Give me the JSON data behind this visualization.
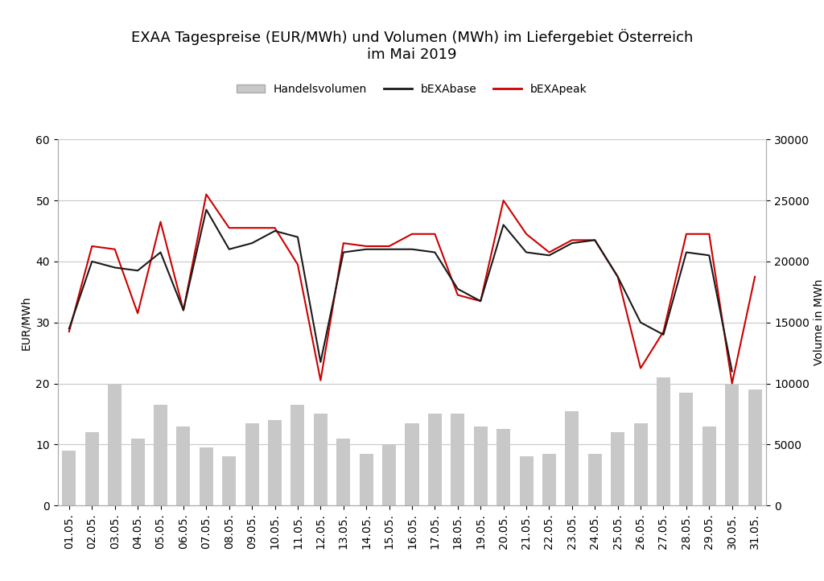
{
  "title": "EXAA Tagespreise (EUR/MWh) und Volumen (MWh) im Liefergebiet Österreich\nim Mai 2019",
  "ylabel_left": "EUR/MWh",
  "ylabel_right": "Volume in MWh",
  "dates": [
    "01.05.",
    "02.05.",
    "03.05.",
    "04.05.",
    "05.05.",
    "06.05.",
    "07.05.",
    "08.05.",
    "09.05.",
    "10.05.",
    "11.05.",
    "12.05.",
    "13.05.",
    "14.05.",
    "15.05.",
    "16.05.",
    "17.05.",
    "18.05.",
    "19.05.",
    "20.05.",
    "21.05.",
    "22.05.",
    "23.05.",
    "24.05.",
    "25.05.",
    "26.05.",
    "27.05.",
    "28.05.",
    "29.05.",
    "30.05.",
    "31.05."
  ],
  "bEXAbase": [
    29.0,
    40.0,
    39.0,
    38.5,
    41.5,
    32.0,
    48.5,
    42.0,
    43.0,
    45.0,
    44.0,
    23.5,
    41.5,
    42.0,
    42.0,
    42.0,
    41.5,
    35.5,
    33.5,
    46.0,
    41.5,
    41.0,
    43.0,
    43.5,
    37.5,
    30.0,
    28.0,
    41.5,
    41.0,
    22.0,
    null
  ],
  "bEXApeak": [
    28.5,
    42.5,
    42.0,
    31.5,
    46.5,
    32.0,
    51.0,
    45.5,
    45.5,
    45.5,
    39.5,
    20.5,
    43.0,
    42.5,
    42.5,
    44.5,
    44.5,
    34.5,
    33.5,
    50.0,
    44.5,
    41.5,
    43.5,
    43.5,
    37.5,
    22.5,
    28.5,
    44.5,
    44.5,
    20.0,
    37.5
  ],
  "handelsvolumen": [
    9.0,
    12.0,
    20.0,
    11.0,
    16.5,
    13.0,
    9.5,
    8.0,
    13.5,
    14.0,
    16.5,
    15.0,
    11.0,
    8.5,
    10.0,
    13.5,
    15.0,
    15.0,
    13.0,
    12.5,
    8.0,
    8.5,
    15.5,
    8.5,
    12.0,
    13.5,
    21.0,
    18.5,
    13.0,
    20.0,
    19.0
  ],
  "ylim_left": [
    0,
    60
  ],
  "ylim_right": [
    0,
    30000
  ],
  "yticks_left": [
    0,
    10,
    20,
    30,
    40,
    50,
    60
  ],
  "yticks_right": [
    0,
    5000,
    10000,
    15000,
    20000,
    25000,
    30000
  ],
  "bar_color": "#c8c8c8",
  "base_color": "#1a1a1a",
  "peak_color": "#cc0000",
  "background_color": "#ffffff",
  "grid_color": "#c8c8c8",
  "title_fontsize": 13,
  "label_fontsize": 10,
  "tick_fontsize": 10,
  "legend_fontsize": 10
}
